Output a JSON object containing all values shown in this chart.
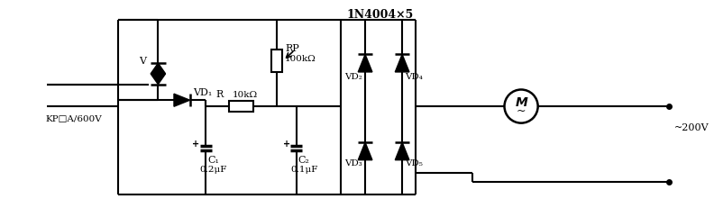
{
  "title": "1N4004×5",
  "bg_color": "#ffffff",
  "figsize": [
    7.92,
    2.41
  ],
  "dpi": 100,
  "labels": {
    "V": "V",
    "KP": "KP□A/600V",
    "VD1": "VD₁",
    "RP": "RP",
    "RP_val": "100kΩ",
    "R": "R",
    "R_val": "10kΩ",
    "C1": "C₁",
    "C1_val": "0.2μF",
    "C2": "C₂",
    "C2_val": "0.1μF",
    "VD2": "VD₂",
    "VD3": "VD₃",
    "VD4": "VD₄",
    "VD5": "VD₅",
    "M_label": "M",
    "voltage": "~200V"
  }
}
